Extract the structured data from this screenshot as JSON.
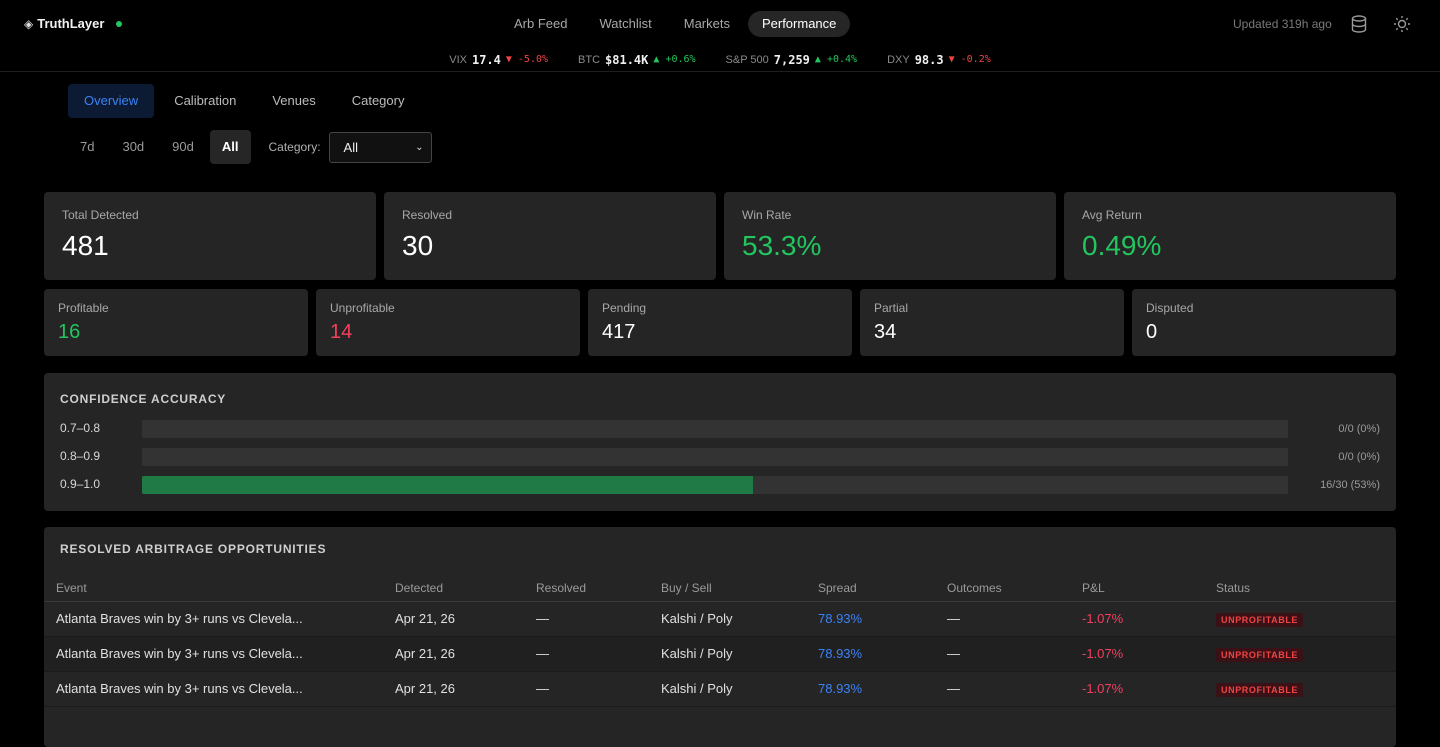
{
  "app": {
    "name": "TruthLayer",
    "logo_glyph": "◈",
    "status_color": "#22c55e"
  },
  "nav": {
    "tabs": [
      "Arb Feed",
      "Watchlist",
      "Markets",
      "Performance"
    ],
    "active": "Performance"
  },
  "header": {
    "updated": "Updated 319h ago"
  },
  "ticker": [
    {
      "sym": "VIX",
      "val": "17.4",
      "dir": "down",
      "chg": "▼ -5.0%"
    },
    {
      "sym": "BTC",
      "val": "$81.4K",
      "dir": "up",
      "chg": "▲ +0.6%"
    },
    {
      "sym": "S&P 500",
      "val": "7,259",
      "dir": "up",
      "chg": "▲ +0.4%"
    },
    {
      "sym": "DXY",
      "val": "98.3",
      "dir": "down",
      "chg": "▼ -0.2%"
    }
  ],
  "subtabs": [
    "Overview",
    "Calibration",
    "Venues",
    "Category"
  ],
  "ranges": [
    "7d",
    "30d",
    "90d",
    "All"
  ],
  "category_filter": {
    "label": "Category:",
    "value": "All"
  },
  "summary": [
    {
      "label": "Total Detected",
      "value": "481",
      "tone": ""
    },
    {
      "label": "Resolved",
      "value": "30",
      "tone": ""
    },
    {
      "label": "Win Rate",
      "value": "53.3%",
      "tone": "green"
    },
    {
      "label": "Avg Return",
      "value": "0.49%",
      "tone": "green"
    }
  ],
  "outcomes": [
    {
      "label": "Profitable",
      "value": "16",
      "tone": "green"
    },
    {
      "label": "Unprofitable",
      "value": "14",
      "tone": "red"
    },
    {
      "label": "Pending",
      "value": "417",
      "tone": ""
    },
    {
      "label": "Partial",
      "value": "34",
      "tone": ""
    },
    {
      "label": "Disputed",
      "value": "0",
      "tone": ""
    }
  ],
  "confidence": {
    "title": "CONFIDENCE ACCURACY",
    "rows": [
      {
        "label": "0.7–0.8",
        "fraction": 0,
        "text": "0/0 (0%)"
      },
      {
        "label": "0.8–0.9",
        "fraction": 0,
        "text": "0/0 (0%)"
      },
      {
        "label": "0.9–1.0",
        "fraction": 0.533,
        "text": "16/30 (53%)"
      }
    ]
  },
  "resolved": {
    "title": "RESOLVED ARBITRAGE OPPORTUNITIES",
    "columns": [
      "Event",
      "Detected",
      "Resolved",
      "Buy / Sell",
      "Spread",
      "Outcomes",
      "P&L",
      "Status"
    ],
    "rows": [
      [
        "Atlanta Braves win by 3+ runs vs Clevela...",
        "Apr 21, 26",
        "—",
        "Kalshi / Poly",
        "78.93%",
        "—",
        "-1.07%",
        "UNPROFITABLE"
      ],
      [
        "Atlanta Braves win by 3+ runs vs Clevela...",
        "Apr 21, 26",
        "—",
        "Kalshi / Poly",
        "78.93%",
        "—",
        "-1.07%",
        "UNPROFITABLE"
      ],
      [
        "Atlanta Braves win by 3+ runs vs Clevela...",
        "Apr 21, 26",
        "—",
        "Kalshi / Poly",
        "78.93%",
        "—",
        "-1.07%",
        "UNPROFITABLE"
      ]
    ]
  }
}
